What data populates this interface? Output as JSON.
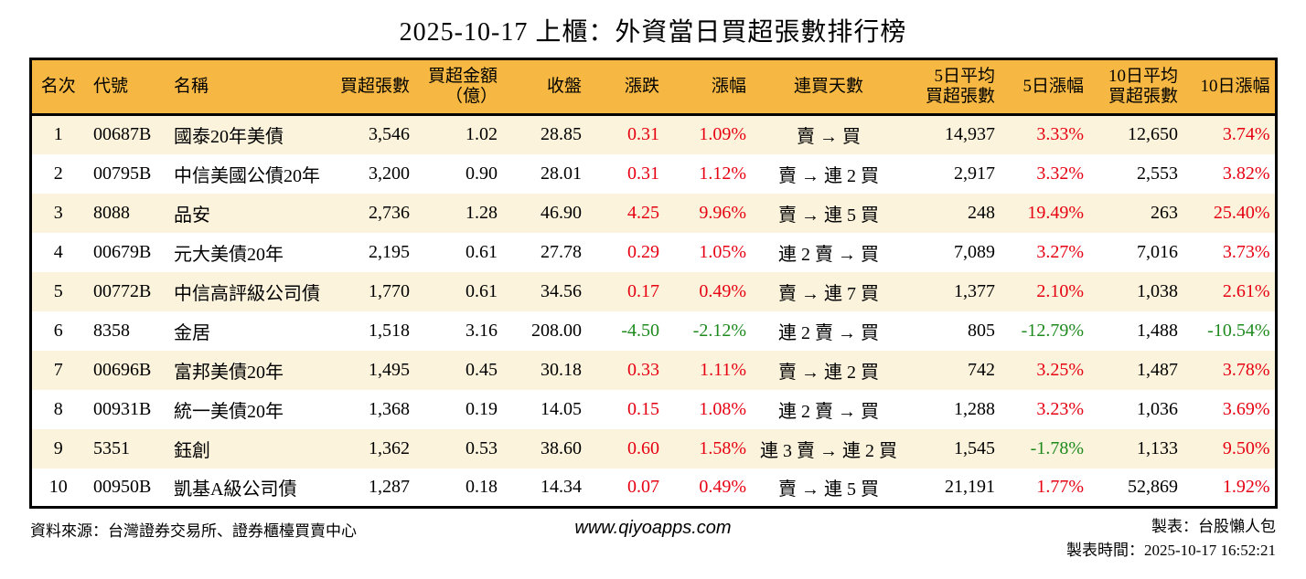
{
  "title": "2025-10-17 上櫃：外資當日買超張數排行榜",
  "colors": {
    "header_bg": "#f6b843",
    "row_alt_bg": "#fbf3db",
    "up_color": "#e60012",
    "down_color": "#1e8a1e",
    "border_color": "#000000"
  },
  "table": {
    "columns": [
      {
        "key": "rank",
        "label": "名次"
      },
      {
        "key": "code",
        "label": "代號"
      },
      {
        "key": "name",
        "label": "名稱"
      },
      {
        "key": "net_buy",
        "label": "買超張數"
      },
      {
        "key": "amount",
        "label": "買超金額\n（億）"
      },
      {
        "key": "close",
        "label": "收盤"
      },
      {
        "key": "change",
        "label": "漲跌",
        "colored": true
      },
      {
        "key": "change_pct",
        "label": "漲幅",
        "colored": true
      },
      {
        "key": "streak",
        "label": "連買天數"
      },
      {
        "key": "avg5",
        "label": "5日平均\n買超張數"
      },
      {
        "key": "pct5",
        "label": "5日漲幅",
        "colored": true
      },
      {
        "key": "avg10",
        "label": "10日平均\n買超張數"
      },
      {
        "key": "pct10",
        "label": "10日漲幅",
        "colored": true
      }
    ],
    "rows": [
      {
        "rank": "1",
        "code": "00687B",
        "name": "國泰20年美債",
        "net_buy": "3,546",
        "amount": "1.02",
        "close": "28.85",
        "change": "0.31",
        "change_pct": "1.09%",
        "streak": "賣 → 買",
        "avg5": "14,937",
        "pct5": "3.33%",
        "avg10": "12,650",
        "pct10": "3.74%"
      },
      {
        "rank": "2",
        "code": "00795B",
        "name": "中信美國公債20年",
        "net_buy": "3,200",
        "amount": "0.90",
        "close": "28.01",
        "change": "0.31",
        "change_pct": "1.12%",
        "streak": "賣 → 連 2 買",
        "avg5": "2,917",
        "pct5": "3.32%",
        "avg10": "2,553",
        "pct10": "3.82%"
      },
      {
        "rank": "3",
        "code": "8088",
        "name": "品安",
        "net_buy": "2,736",
        "amount": "1.28",
        "close": "46.90",
        "change": "4.25",
        "change_pct": "9.96%",
        "streak": "賣 → 連 5 買",
        "avg5": "248",
        "pct5": "19.49%",
        "avg10": "263",
        "pct10": "25.40%"
      },
      {
        "rank": "4",
        "code": "00679B",
        "name": "元大美債20年",
        "net_buy": "2,195",
        "amount": "0.61",
        "close": "27.78",
        "change": "0.29",
        "change_pct": "1.05%",
        "streak": "連 2 賣 → 買",
        "avg5": "7,089",
        "pct5": "3.27%",
        "avg10": "7,016",
        "pct10": "3.73%"
      },
      {
        "rank": "5",
        "code": "00772B",
        "name": "中信高評級公司債",
        "net_buy": "1,770",
        "amount": "0.61",
        "close": "34.56",
        "change": "0.17",
        "change_pct": "0.49%",
        "streak": "賣 → 連 7 買",
        "avg5": "1,377",
        "pct5": "2.10%",
        "avg10": "1,038",
        "pct10": "2.61%"
      },
      {
        "rank": "6",
        "code": "8358",
        "name": "金居",
        "net_buy": "1,518",
        "amount": "3.16",
        "close": "208.00",
        "change": "-4.50",
        "change_pct": "-2.12%",
        "streak": "連 2 賣 → 買",
        "avg5": "805",
        "pct5": "-12.79%",
        "avg10": "1,488",
        "pct10": "-10.54%"
      },
      {
        "rank": "7",
        "code": "00696B",
        "name": "富邦美債20年",
        "net_buy": "1,495",
        "amount": "0.45",
        "close": "30.18",
        "change": "0.33",
        "change_pct": "1.11%",
        "streak": "賣 → 連 2 買",
        "avg5": "742",
        "pct5": "3.25%",
        "avg10": "1,487",
        "pct10": "3.78%"
      },
      {
        "rank": "8",
        "code": "00931B",
        "name": "統一美債20年",
        "net_buy": "1,368",
        "amount": "0.19",
        "close": "14.05",
        "change": "0.15",
        "change_pct": "1.08%",
        "streak": "連 2 賣 → 買",
        "avg5": "1,288",
        "pct5": "3.23%",
        "avg10": "1,036",
        "pct10": "3.69%"
      },
      {
        "rank": "9",
        "code": "5351",
        "name": "鈺創",
        "net_buy": "1,362",
        "amount": "0.53",
        "close": "38.60",
        "change": "0.60",
        "change_pct": "1.58%",
        "streak": "連 3 賣 → 連 2 買",
        "avg5": "1,545",
        "pct5": "-1.78%",
        "avg10": "1,133",
        "pct10": "9.50%"
      },
      {
        "rank": "10",
        "code": "00950B",
        "name": "凱基A級公司債",
        "net_buy": "1,287",
        "amount": "0.18",
        "close": "14.34",
        "change": "0.07",
        "change_pct": "0.49%",
        "streak": "賣 → 連 5 買",
        "avg5": "21,191",
        "pct5": "1.77%",
        "avg10": "52,869",
        "pct10": "1.92%"
      }
    ]
  },
  "footer": {
    "source": "資料來源：台灣證券交易所、證券櫃檯買賣中心",
    "website": "www.qiyoapps.com",
    "maker": "製表：台股懶人包",
    "time": "製表時間：2025-10-17 16:52:21"
  }
}
